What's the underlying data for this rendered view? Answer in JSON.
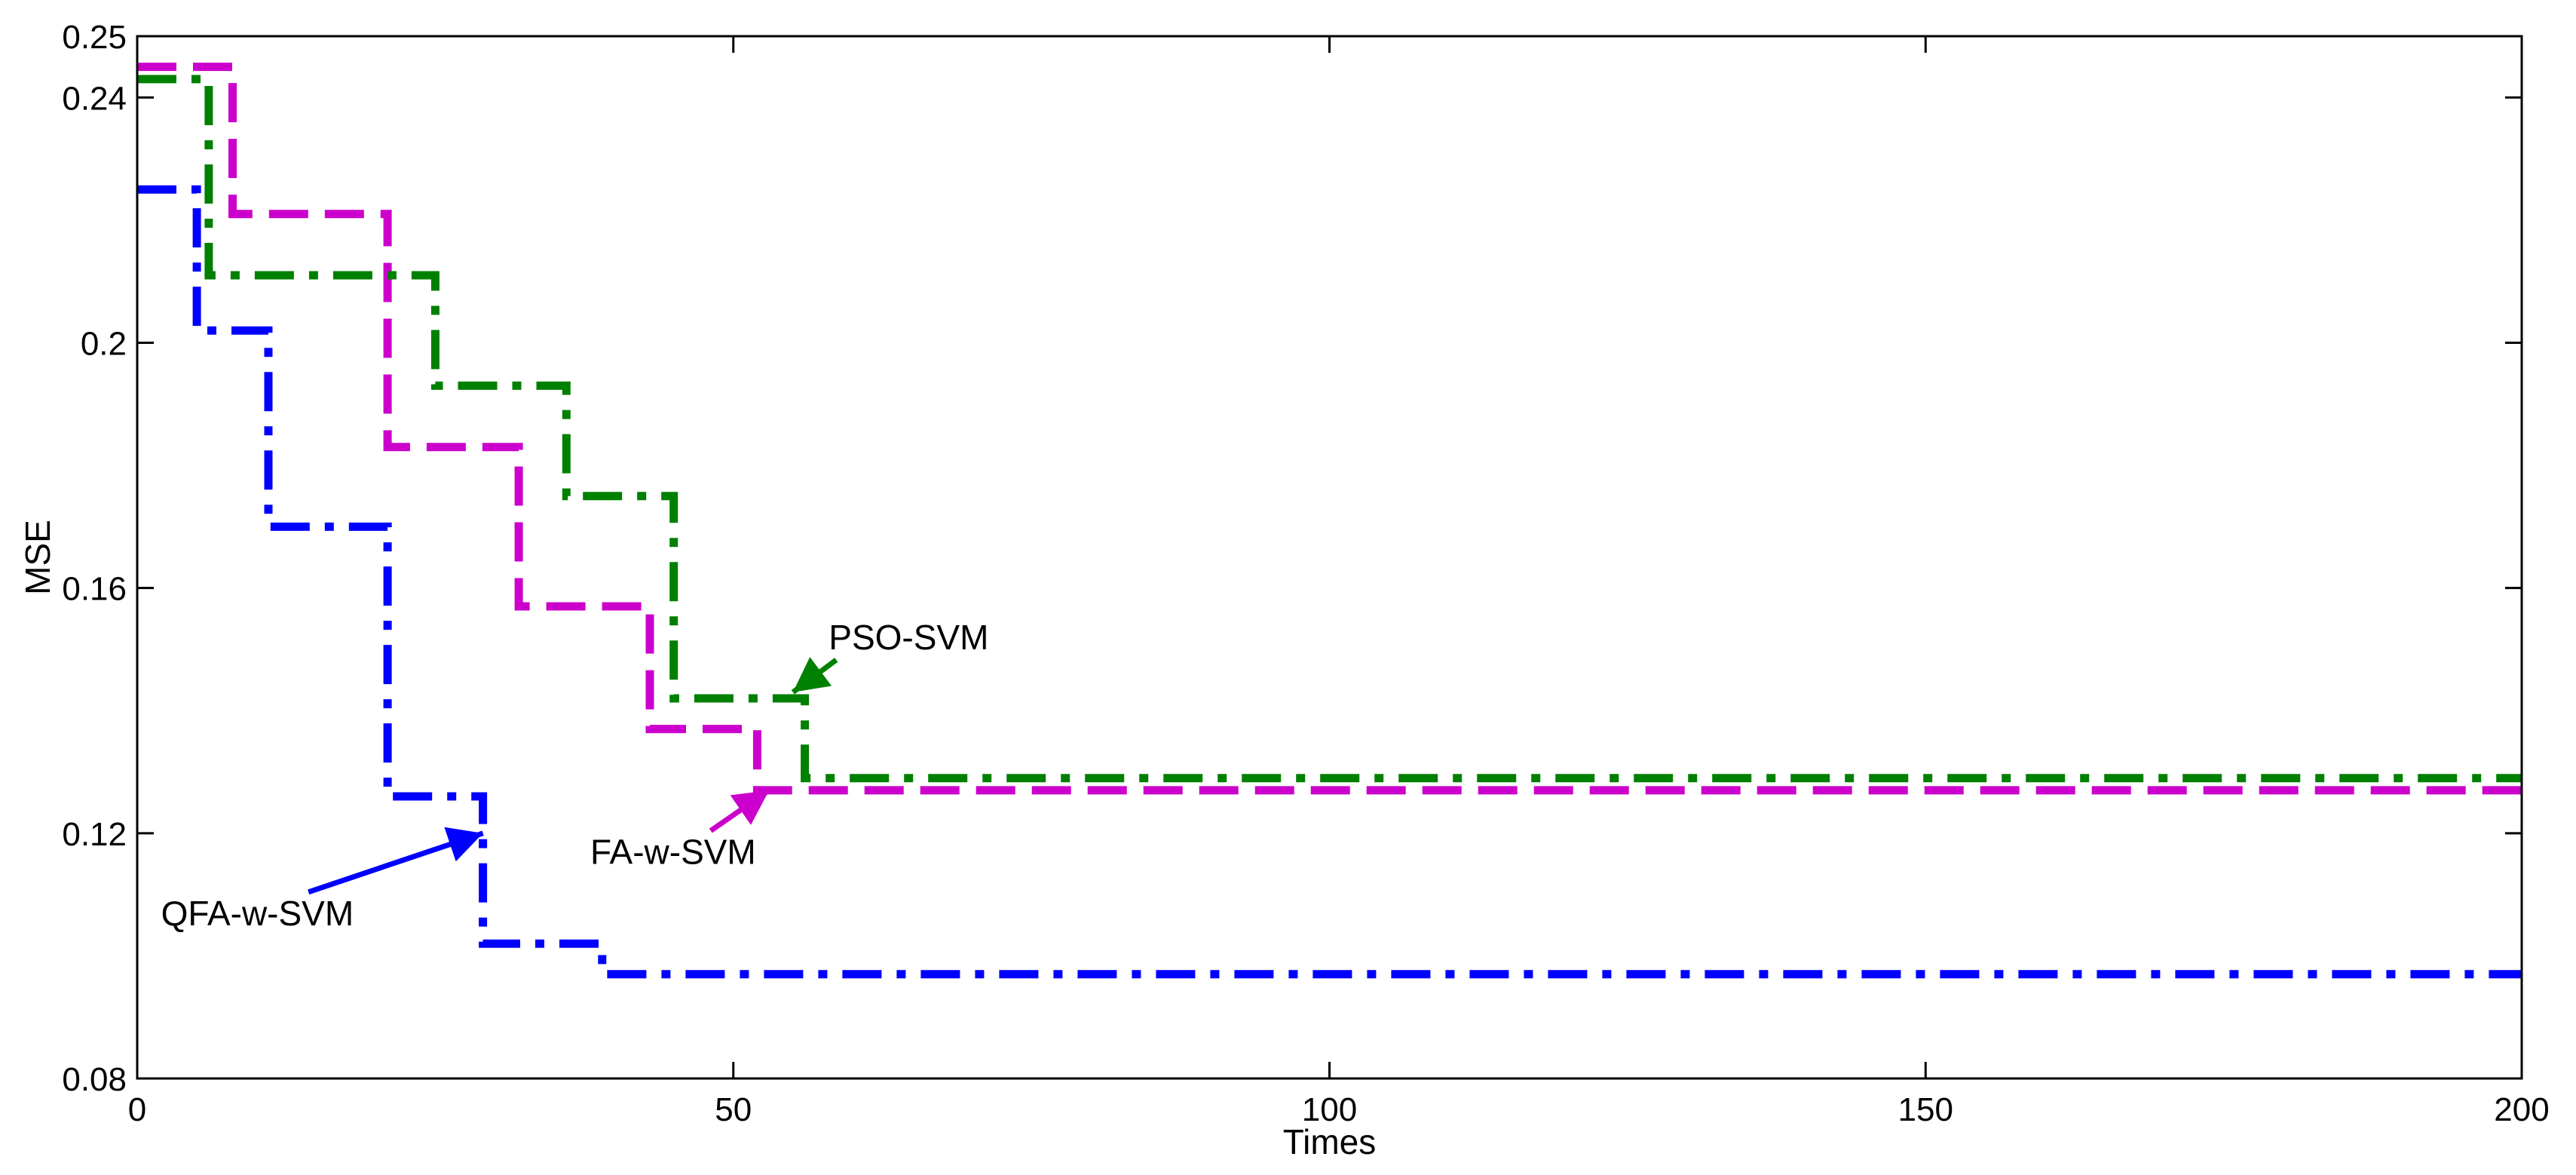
{
  "chart_data": {
    "type": "line",
    "xlabel": "Times",
    "ylabel": "MSE",
    "xlim": [
      0,
      200
    ],
    "ylim": [
      0.08,
      0.25
    ],
    "xticks": [
      "0",
      "50",
      "100",
      "150",
      "200"
    ],
    "xtick_values": [
      0,
      50,
      100,
      150,
      200
    ],
    "yticks": [
      "0.08",
      "0.12",
      "0.16",
      "0.2",
      "0.24",
      "0.25"
    ],
    "ytick_values": [
      0.08,
      0.12,
      0.16,
      0.2,
      0.24,
      0.25
    ],
    "grid": false,
    "series": [
      {
        "name": "QFA-w-SVM",
        "color": "#0000ff",
        "dash": "dashdot",
        "points": [
          [
            0,
            0.225
          ],
          [
            5,
            0.225
          ],
          [
            5,
            0.202
          ],
          [
            11,
            0.202
          ],
          [
            11,
            0.17
          ],
          [
            21,
            0.17
          ],
          [
            21,
            0.126
          ],
          [
            29,
            0.126
          ],
          [
            29,
            0.102
          ],
          [
            39,
            0.102
          ],
          [
            39,
            0.097
          ],
          [
            200,
            0.097
          ]
        ]
      },
      {
        "name": "FA-w-SVM",
        "color": "#cc00cc",
        "dash": "dashed",
        "points": [
          [
            0,
            0.245
          ],
          [
            8,
            0.245
          ],
          [
            8,
            0.221
          ],
          [
            21,
            0.221
          ],
          [
            21,
            0.183
          ],
          [
            32,
            0.183
          ],
          [
            32,
            0.157
          ],
          [
            43,
            0.157
          ],
          [
            43,
            0.137
          ],
          [
            52,
            0.137
          ],
          [
            52,
            0.127
          ],
          [
            200,
            0.127
          ]
        ]
      },
      {
        "name": "PSO-SVM",
        "color": "#008000",
        "dash": "dashdot",
        "points": [
          [
            0,
            0.243
          ],
          [
            6,
            0.243
          ],
          [
            6,
            0.211
          ],
          [
            25,
            0.211
          ],
          [
            25,
            0.193
          ],
          [
            36,
            0.193
          ],
          [
            36,
            0.175
          ],
          [
            45,
            0.175
          ],
          [
            45,
            0.142
          ],
          [
            56,
            0.142
          ],
          [
            56,
            0.129
          ],
          [
            200,
            0.129
          ]
        ]
      }
    ],
    "annotations": [
      {
        "text": "PSO-SVM",
        "series": "PSO-SVM",
        "text_at": [
          58,
          0.15
        ],
        "arrow_to": [
          55,
          0.143
        ]
      },
      {
        "text": "FA-w-SVM",
        "series": "FA-w-SVM",
        "text_at": [
          38,
          0.115
        ],
        "arrow_to": [
          53,
          0.127
        ]
      },
      {
        "text": "QFA-w-SVM",
        "series": "QFA-w-SVM",
        "text_at": [
          2,
          0.105
        ],
        "arrow_to": [
          29,
          0.12
        ]
      }
    ]
  }
}
